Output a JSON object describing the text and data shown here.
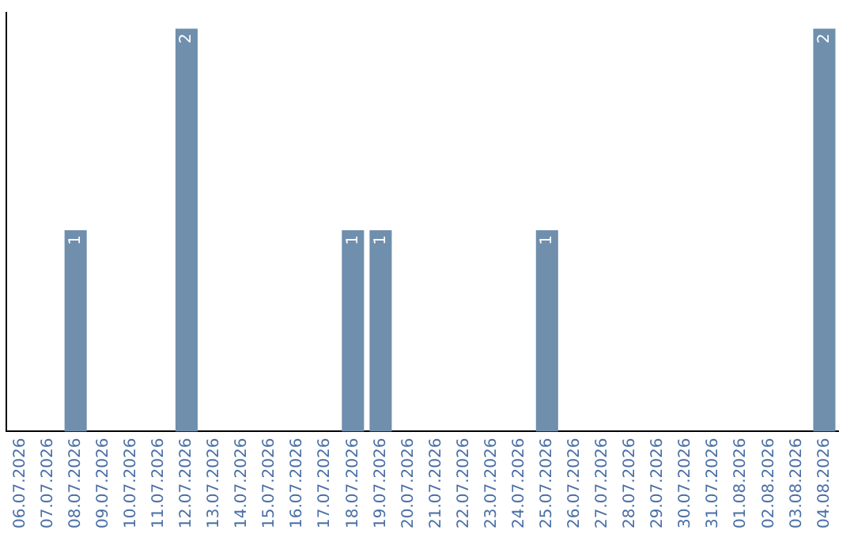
{
  "chart_data": {
    "type": "bar",
    "categories": [
      "06.07.2026",
      "07.07.2026",
      "08.07.2026",
      "09.07.2026",
      "10.07.2026",
      "11.07.2026",
      "12.07.2026",
      "13.07.2026",
      "14.07.2026",
      "15.07.2026",
      "16.07.2026",
      "17.07.2026",
      "18.07.2026",
      "19.07.2026",
      "20.07.2026",
      "21.07.2026",
      "22.07.2026",
      "23.07.2026",
      "24.07.2026",
      "25.07.2026",
      "26.07.2026",
      "27.07.2026",
      "28.07.2026",
      "29.07.2026",
      "30.07.2026",
      "31.07.2026",
      "01.08.2026",
      "02.08.2026",
      "03.08.2026",
      "04.08.2026"
    ],
    "values": [
      0,
      0,
      1,
      0,
      0,
      0,
      2,
      0,
      0,
      0,
      0,
      0,
      1,
      1,
      0,
      0,
      0,
      0,
      0,
      1,
      0,
      0,
      0,
      0,
      0,
      0,
      0,
      0,
      0,
      2
    ],
    "value_labels": [
      null,
      null,
      "1",
      null,
      null,
      null,
      "2",
      null,
      null,
      null,
      null,
      null,
      "1",
      "1",
      null,
      null,
      null,
      null,
      null,
      "1",
      null,
      null,
      null,
      null,
      null,
      null,
      null,
      null,
      null,
      "2"
    ],
    "color": "#6f8fad",
    "grid": false,
    "legend": false,
    "tick_labels": "x"
  }
}
